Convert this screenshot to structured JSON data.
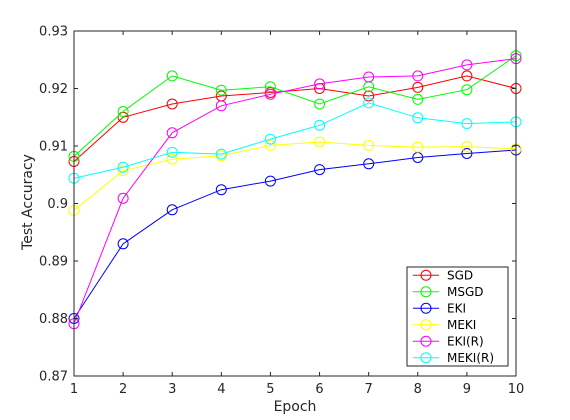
{
  "chart_data": {
    "type": "line",
    "x": [
      1,
      2,
      3,
      4,
      5,
      6,
      7,
      8,
      9,
      10
    ],
    "xticks": [
      "1",
      "2",
      "3",
      "4",
      "5",
      "6",
      "7",
      "8",
      "9",
      "10"
    ],
    "yticks": [
      "0.87",
      "0.88",
      "0.89",
      "0.9",
      "0.91",
      "0.92",
      "0.93"
    ],
    "xlim": [
      1,
      10
    ],
    "ylim": [
      0.87,
      0.93
    ],
    "xlabel": "Epoch",
    "ylabel": "Test Accuracy",
    "grid": false,
    "legend_position": "bottom-right",
    "series": [
      {
        "name": "SGD",
        "color": "#ff0000",
        "values": [
          0.9073,
          0.915,
          0.9173,
          0.9187,
          0.9193,
          0.92,
          0.9187,
          0.9202,
          0.9222,
          0.92
        ]
      },
      {
        "name": "MSGD",
        "color": "#00ff00",
        "values": [
          0.9082,
          0.916,
          0.9222,
          0.9197,
          0.9203,
          0.9173,
          0.9203,
          0.9181,
          0.9198,
          0.9257
        ]
      },
      {
        "name": "EKI",
        "color": "#0000ff",
        "values": [
          0.88,
          0.893,
          0.8989,
          0.9024,
          0.9039,
          0.9059,
          0.9069,
          0.908,
          0.9087,
          0.9093
        ]
      },
      {
        "name": "MEKI",
        "color": "#ffff00",
        "values": [
          0.8988,
          0.9057,
          0.9077,
          0.9083,
          0.9101,
          0.9107,
          0.9101,
          0.9098,
          0.9099,
          0.9095
        ]
      },
      {
        "name": "EKI(R)",
        "color": "#ff00ff",
        "values": [
          0.8791,
          0.9009,
          0.9123,
          0.917,
          0.919,
          0.9208,
          0.922,
          0.9222,
          0.9241,
          0.9252
        ]
      },
      {
        "name": "MEKI(R)",
        "color": "#00ffff",
        "values": [
          0.9044,
          0.9063,
          0.9089,
          0.9086,
          0.9112,
          0.9136,
          0.9175,
          0.9149,
          0.9139,
          0.9142
        ]
      }
    ]
  }
}
